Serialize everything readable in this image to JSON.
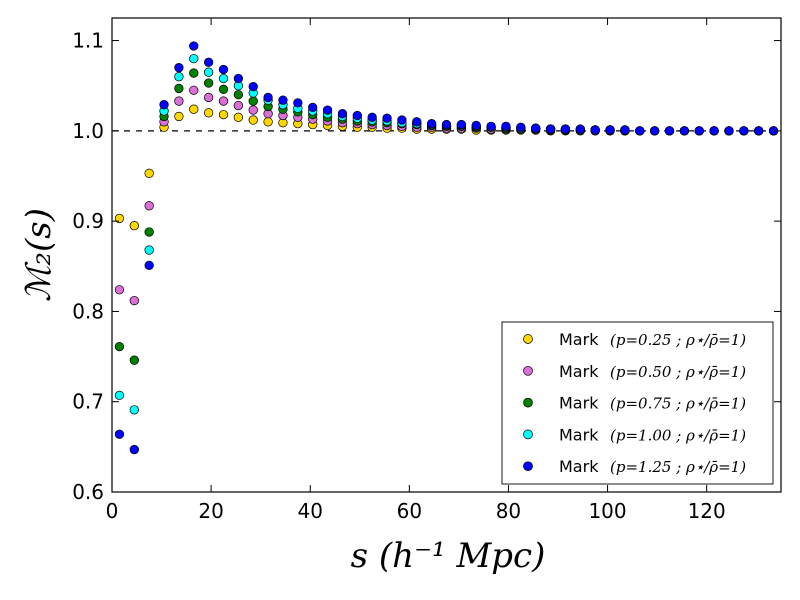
{
  "chart_data": {
    "type": "scatter",
    "title": "",
    "xlabel": "s (h⁻¹ Mpc)",
    "ylabel": "ℳ₂(s)",
    "xlim": [
      0,
      135
    ],
    "ylim": [
      0.6,
      1.125
    ],
    "xticks": [
      0,
      20,
      40,
      60,
      80,
      100,
      120
    ],
    "yticks": [
      0.6,
      0.7,
      0.8,
      0.9,
      1.0,
      1.1
    ],
    "xtick_labels": [
      "0",
      "20",
      "40",
      "60",
      "80",
      "100",
      "120"
    ],
    "ytick_labels": [
      "0.6",
      "0.7",
      "0.8",
      "0.9",
      "1.0",
      "1.1"
    ],
    "reference_line": {
      "y": 1.0,
      "style": "dashed",
      "color": "#000000"
    },
    "grid": false,
    "legend_position": "lower-right",
    "x": [
      1.5,
      4.5,
      7.5,
      10.5,
      13.5,
      16.5,
      19.5,
      22.5,
      25.5,
      28.5,
      31.5,
      34.5,
      37.5,
      40.5,
      43.5,
      46.5,
      49.5,
      52.5,
      55.5,
      58.5,
      61.5,
      64.5,
      67.5,
      70.5,
      73.5,
      76.5,
      79.5,
      82.5,
      85.5,
      88.5,
      91.5,
      94.5,
      97.5,
      100.5,
      103.5,
      106.5,
      109.5,
      112.5,
      115.5,
      118.5,
      121.5,
      124.5,
      127.5,
      130.5,
      133.5
    ],
    "series": [
      {
        "name": "Mark (p=0.25 ; ρ⋆/ρ̄=1)",
        "mark": "Mark",
        "param": "(p=0.25 ; ρ⋆/ρ̄=1)",
        "color": "#ffd700",
        "values": [
          0.903,
          0.895,
          0.953,
          1.004,
          1.016,
          1.024,
          1.02,
          1.018,
          1.015,
          1.012,
          1.01,
          1.009,
          1.008,
          1.007,
          1.006,
          1.005,
          1.004,
          1.004,
          1.003,
          1.003,
          1.002,
          1.002,
          1.002,
          1.002,
          1.001,
          1.001,
          1.001,
          1.001,
          1.001,
          1.0,
          1.0,
          1.0,
          1.0,
          1.0,
          1.0,
          1.0,
          1.0,
          1.0,
          1.0,
          1.0,
          1.0,
          1.0,
          1.0,
          1.0,
          1.0
        ]
      },
      {
        "name": "Mark (p=0.50 ; ρ⋆/ρ̄=1)",
        "mark": "Mark",
        "param": "(p=0.50 ; ρ⋆/ρ̄=1)",
        "color": "#da70d6",
        "values": [
          0.824,
          0.812,
          0.917,
          1.01,
          1.033,
          1.045,
          1.037,
          1.033,
          1.028,
          1.023,
          1.019,
          1.017,
          1.015,
          1.013,
          1.011,
          1.009,
          1.008,
          1.007,
          1.006,
          1.005,
          1.004,
          1.004,
          1.003,
          1.003,
          1.003,
          1.002,
          1.002,
          1.002,
          1.001,
          1.001,
          1.001,
          1.001,
          1.0,
          1.0,
          1.0,
          1.0,
          1.0,
          1.0,
          1.0,
          1.0,
          1.0,
          1.0,
          1.0,
          1.0,
          1.0
        ]
      },
      {
        "name": "Mark (p=0.75 ; ρ⋆/ρ̄=1)",
        "mark": "Mark",
        "param": "(p=0.75 ; ρ⋆/ρ̄=1)",
        "color": "#008000",
        "values": [
          0.761,
          0.746,
          0.888,
          1.016,
          1.047,
          1.064,
          1.053,
          1.046,
          1.04,
          1.033,
          1.027,
          1.024,
          1.021,
          1.018,
          1.015,
          1.013,
          1.011,
          1.01,
          1.009,
          1.008,
          1.007,
          1.006,
          1.005,
          1.005,
          1.004,
          1.004,
          1.003,
          1.003,
          1.002,
          1.002,
          1.001,
          1.001,
          1.001,
          1.001,
          1.0,
          1.0,
          1.0,
          1.0,
          1.0,
          1.0,
          1.0,
          1.0,
          1.0,
          1.0,
          1.0
        ]
      },
      {
        "name": "Mark (p=1.00 ; ρ⋆/ρ̄=1)",
        "mark": "Mark",
        "param": "(p=1.00 ; ρ⋆/ρ̄=1)",
        "color": "#00ffff",
        "values": [
          0.707,
          0.691,
          0.868,
          1.022,
          1.06,
          1.08,
          1.065,
          1.058,
          1.05,
          1.042,
          1.034,
          1.029,
          1.025,
          1.022,
          1.019,
          1.016,
          1.014,
          1.012,
          1.011,
          1.009,
          1.008,
          1.007,
          1.006,
          1.006,
          1.005,
          1.004,
          1.004,
          1.003,
          1.003,
          1.002,
          1.002,
          1.001,
          1.001,
          1.001,
          1.001,
          1.0,
          1.0,
          1.0,
          1.0,
          1.0,
          1.0,
          1.0,
          1.0,
          1.0,
          1.0
        ]
      },
      {
        "name": "Mark (p=1.25 ; ρ⋆/ρ̄=1)",
        "mark": "Mark",
        "param": "(p=1.25 ; ρ⋆/ρ̄=1)",
        "color": "#0000ff",
        "values": [
          0.664,
          0.647,
          0.851,
          1.029,
          1.07,
          1.094,
          1.076,
          1.068,
          1.058,
          1.049,
          1.037,
          1.034,
          1.031,
          1.026,
          1.023,
          1.019,
          1.017,
          1.015,
          1.014,
          1.012,
          1.01,
          1.008,
          1.007,
          1.007,
          1.006,
          1.005,
          1.005,
          1.004,
          1.003,
          1.002,
          1.002,
          1.002,
          1.001,
          1.001,
          1.001,
          1.0,
          1.0,
          1.0,
          1.0,
          1.0,
          1.0,
          1.0,
          1.0,
          1.0,
          1.0
        ]
      }
    ]
  }
}
